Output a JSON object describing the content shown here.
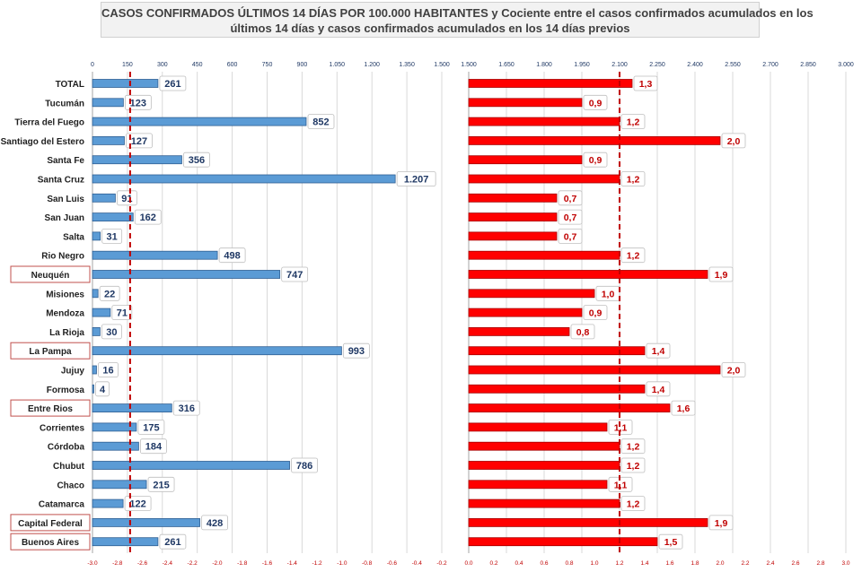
{
  "title": {
    "line1": "CASOS CONFIRMADOS ÚLTIMOS 14 DÍAS POR 100.000 HABITANTES y Cociente entre el casos confirmados acumulados en los",
    "line2": "últimos 14 días y casos confirmados acumulados en los 14 días previos"
  },
  "colors": {
    "left_bar": "#5b9bd5",
    "left_bar_stroke": "#2f5f93",
    "left_label": "#1f3864",
    "right_bar": "#ff0000",
    "right_bar_stroke": "#a50000",
    "right_label": "#c00000",
    "ref_line": "#c00000",
    "grid": "#d9d9d9",
    "highlight_border": "#c0504d"
  },
  "chart_data": {
    "type": "bar",
    "orientation": "horizontal",
    "categories": [
      "TOTAL",
      "Tucumán",
      "Tierra del Fuego",
      "Santiago del Estero",
      "Santa Fe",
      "Santa Cruz",
      "San Luis",
      "San Juan",
      "Salta",
      "Rio Negro",
      "Neuquén",
      "Misiones",
      "Mendoza",
      "La Rioja",
      "La Pampa",
      "Jujuy",
      "Formosa",
      "Entre Rios",
      "Corrientes",
      "Córdoba",
      "Chubut",
      "Chaco",
      "Catamarca",
      "Capital Federal",
      "Buenos Aires"
    ],
    "highlighted_categories": [
      "Neuquén",
      "La Pampa",
      "Entre Rios",
      "Capital Federal",
      "Buenos Aires"
    ],
    "left_panel": {
      "series_values": [
        261,
        123,
        852,
        127,
        356,
        1207,
        91,
        162,
        31,
        498,
        747,
        22,
        71,
        30,
        993,
        16,
        4,
        316,
        175,
        184,
        786,
        215,
        122,
        428,
        261
      ],
      "value_labels": [
        "261",
        "123",
        "852",
        "127",
        "356",
        "1.207",
        "91",
        "162",
        "31",
        "498",
        "747",
        "22",
        "71",
        "30",
        "993",
        "16",
        "4",
        "316",
        "175",
        "184",
        "786",
        "215",
        "122",
        "428",
        "261"
      ],
      "xlim": [
        0,
        1500
      ],
      "top_ticks": [
        "0",
        "150",
        "300",
        "450",
        "600",
        "750",
        "900",
        "1.050",
        "1.200",
        "1.350",
        "1.500"
      ],
      "bottom_ticks": [
        "-3.0",
        "-2.8",
        "-2.6",
        "-2.4",
        "-2.2",
        "-2.0",
        "-1.8",
        "-1.6",
        "-1.4",
        "-1.2",
        "-1.0",
        "-0.8",
        "-0.6",
        "-0.4",
        "-0.2"
      ],
      "reference_line": 150
    },
    "right_panel": {
      "series_values": [
        1.3,
        0.9,
        1.2,
        2.0,
        0.9,
        1.2,
        0.7,
        0.7,
        0.7,
        1.2,
        1.9,
        1.0,
        0.9,
        0.8,
        1.4,
        2.0,
        1.4,
        1.6,
        1.1,
        1.2,
        1.2,
        1.1,
        1.2,
        1.9,
        1.5
      ],
      "value_labels": [
        "1,3",
        "0,9",
        "1,2",
        "2,0",
        "0,9",
        "1,2",
        "0,7",
        "0,7",
        "0,7",
        "1,2",
        "1,9",
        "1,0",
        "0,9",
        "0,8",
        "1,4",
        "2,0",
        "1,4",
        "1,6",
        "1,1",
        "1,2",
        "1,2",
        "1,1",
        "1,2",
        "1,9",
        "1,5"
      ],
      "xlim": [
        0,
        3.0
      ],
      "top_ticks": [
        "1.500",
        "1.650",
        "1.800",
        "1.950",
        "2.100",
        "2.250",
        "2.400",
        "2.550",
        "2.700",
        "2.850",
        "3.000"
      ],
      "bottom_ticks": [
        "0.0",
        "0.2",
        "0.4",
        "0.6",
        "0.8",
        "1.0",
        "1.2",
        "1.4",
        "1.6",
        "1.8",
        "2.0",
        "2.2",
        "2.4",
        "2.6",
        "2.8",
        "3.0"
      ],
      "reference_line": 1.2
    },
    "grid": true
  }
}
